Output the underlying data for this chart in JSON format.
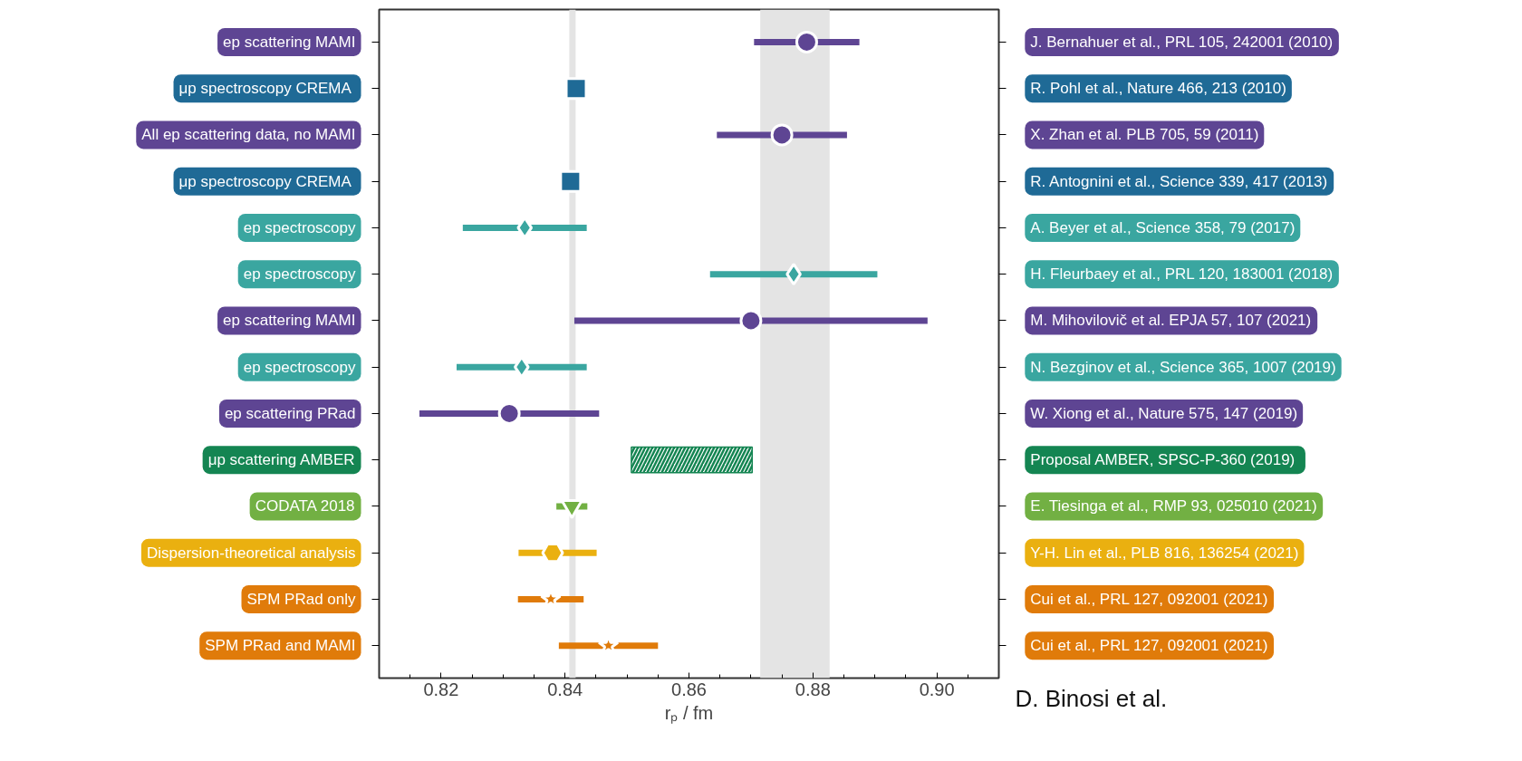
{
  "chart_data": {
    "type": "scatter",
    "orientation": "horizontal",
    "xlabel": "rₚ / fm",
    "categories": [
      "ep scattering MAMI",
      "μp  spectroscopy CREMA",
      "All ep scattering data, no MAMI",
      "μp  spectroscopy CREMA",
      "ep spectroscopy",
      "ep spectroscopy",
      "ep scattering MAMI",
      "ep spectroscopy",
      "ep scattering PRad",
      "μp scattering AMBER",
      "CODATA 2018",
      "Dispersion-theoretical analysis",
      "SPM PRad only",
      "SPM PRad and MAMI"
    ],
    "y2_categories": [
      "J. Bernahuer et al., PRL 105, 242001 (2010)",
      "R. Pohl et al., Nature 466, 213 (2010)",
      "X. Zhan et al. PLB 705, 59 (2011)",
      "R. Antognini et al., Science 339, 417 (2013)",
      "A. Beyer et al., Science 358, 79 (2017)",
      "H. Fleurbaey et al., PRL 120, 183001 (2018)",
      "M. Mihovilovič et al. EPJA 57, 107 (2021)",
      "N. Bezginov et al., Science 365, 1007 (2019)",
      "W. Xiong et al., Nature 575, 147 (2019)",
      "Proposal AMBER, SPSC-P-360  (2019)",
      "E. Tiesinga et al., RMP 93, 025010 (2021)",
      "Y-H. Lin et al., PLB 816, 136254 (2021)",
      "Cui et al., PRL 127, 092001 (2021)",
      "Cui et al., PRL 127, 092001 (2021)"
    ],
    "xlim": [
      0.81,
      0.91
    ],
    "xticks": [
      {
        "value": 0.815,
        "label": null
      },
      0.82,
      {
        "value": 0.825,
        "label": null
      },
      {
        "value": 0.83,
        "label": null
      },
      {
        "value": 0.835,
        "label": null
      },
      0.84,
      {
        "value": 0.845,
        "label": null
      },
      {
        "value": 0.85,
        "label": null
      },
      {
        "value": 0.855,
        "label": null
      },
      0.86,
      {
        "value": 0.865,
        "label": null
      },
      {
        "value": 0.87,
        "label": null
      },
      {
        "value": 0.875,
        "label": null
      },
      0.88,
      {
        "value": 0.885,
        "label": null
      },
      {
        "value": 0.89,
        "label": null
      },
      {
        "value": 0.895,
        "label": null
      },
      {
        "value": 0.9,
        "label": "0.90"
      },
      {
        "value": 0.905,
        "label": null
      }
    ],
    "tick_labels": "x",
    "series": [
      {
        "color": "#5e4593",
        "marker": "circle",
        "values": [
          0.879,
          null,
          0.875,
          null,
          null,
          null,
          0.87,
          null,
          0.831,
          null,
          null,
          null,
          null,
          null
        ],
        "errors": [
          0.0085,
          null,
          0.0105,
          null,
          null,
          null,
          0.0285,
          null,
          0.0145,
          null,
          null,
          null,
          null,
          null
        ]
      },
      {
        "color": "#1f6a96",
        "marker": "square",
        "values": [
          null,
          0.8418,
          null,
          0.8409,
          null,
          null,
          null,
          null,
          null,
          null,
          null,
          null,
          null,
          null
        ]
      },
      {
        "color": "#3aa6a0",
        "marker": "diamond",
        "values": [
          null,
          null,
          null,
          null,
          0.8335,
          0.8769,
          null,
          0.833,
          null,
          null,
          null,
          null,
          null,
          null
        ],
        "errors": [
          null,
          null,
          null,
          null,
          0.01,
          0.0135,
          null,
          0.0105,
          null,
          null,
          null,
          null,
          null,
          null
        ]
      },
      {
        "type": "bar",
        "color": "#148552",
        "values": [
          null,
          null,
          null,
          null,
          null,
          null,
          null,
          null,
          null,
          0.0195,
          null,
          null,
          null,
          null
        ],
        "base": [
          null,
          null,
          null,
          null,
          null,
          null,
          null,
          null,
          null,
          0.8507,
          null,
          null,
          null,
          null
        ]
      },
      {
        "color": "#72b043",
        "marker": "triangle",
        "values": [
          null,
          null,
          null,
          null,
          null,
          null,
          null,
          null,
          null,
          null,
          0.8411,
          null,
          null,
          null
        ],
        "errors": [
          null,
          null,
          null,
          null,
          null,
          null,
          null,
          null,
          null,
          null,
          0.0025,
          null,
          null,
          null
        ]
      },
      {
        "color": "#eab010",
        "values": [
          null,
          null,
          null,
          null,
          null,
          null,
          null,
          null,
          null,
          null,
          null,
          0.838,
          null,
          null
        ],
        "errors": [
          null,
          null,
          null,
          null,
          null,
          null,
          null,
          null,
          null,
          null,
          null,
          [
            0.8325,
            0.8451
          ],
          null,
          null
        ]
      },
      {
        "color": "#e07b0a",
        "marker": "star",
        "values": [
          null,
          null,
          null,
          null,
          null,
          null,
          null,
          null,
          null,
          null,
          null,
          null,
          0.8377,
          0.847
        ],
        "errors": [
          null,
          null,
          null,
          null,
          null,
          null,
          null,
          null,
          null,
          null,
          null,
          null,
          0.0053,
          0.008
        ]
      }
    ],
    "ref_lines": [
      {
        "axis": "x",
        "value": 0.8412,
        "color": "#e4e4e4"
      }
    ],
    "bands": [
      {
        "axis": "x",
        "from": 0.8715,
        "to": 0.8827,
        "color": "#e4e4e4"
      }
    ],
    "annotations": [
      "D. Binosi et al."
    ]
  }
}
